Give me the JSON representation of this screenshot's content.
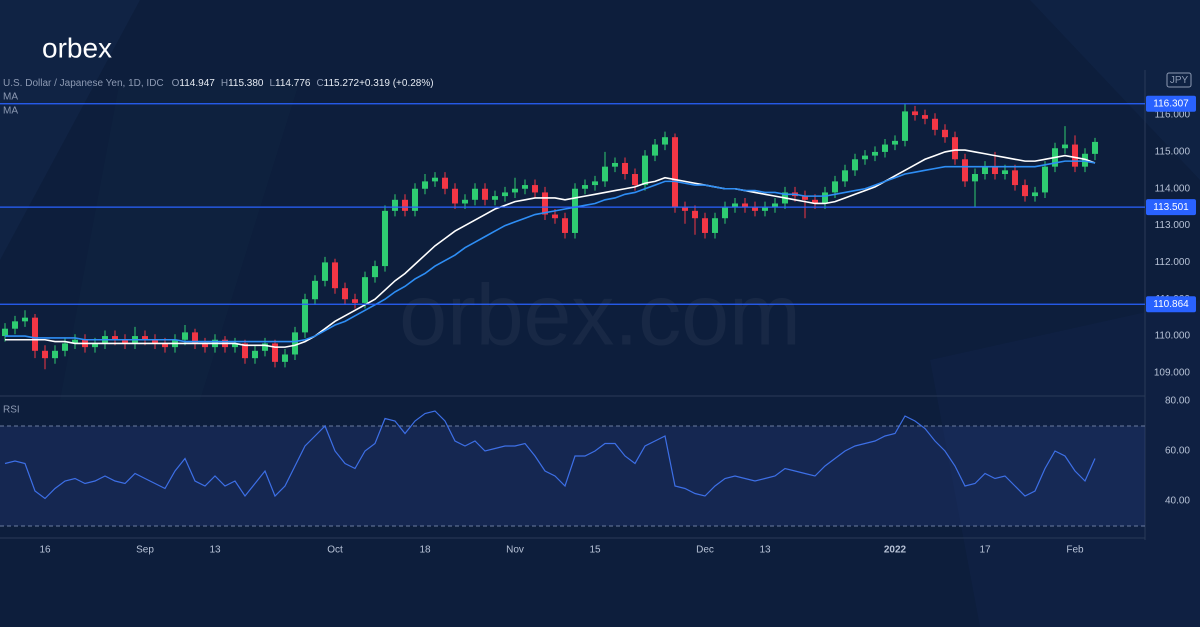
{
  "brand": {
    "logo": "orbex",
    "watermark": "orbex.com"
  },
  "chart_data": [
    {
      "type": "candlestick",
      "title": "U.S. Dollar / Japanese Yen, 1D, IDC",
      "header": [
        "O",
        "114.947",
        "H",
        "115.380",
        "L",
        "114.776",
        "C",
        "115.272",
        "+0.319 (+0.28%)"
      ],
      "currency": "JPY",
      "categories": [
        null,
        null,
        null,
        null,
        "16",
        null,
        null,
        null,
        null,
        null,
        null,
        null,
        null,
        null,
        "Sep",
        null,
        null,
        null,
        null,
        null,
        null,
        "13",
        null,
        null,
        null,
        null,
        null,
        null,
        null,
        null,
        null,
        null,
        null,
        "Oct",
        null,
        null,
        null,
        null,
        null,
        null,
        null,
        null,
        "18",
        null,
        null,
        null,
        null,
        null,
        null,
        null,
        null,
        "Nov",
        null,
        null,
        null,
        null,
        null,
        null,
        null,
        "15",
        null,
        null,
        null,
        null,
        null,
        null,
        null,
        null,
        null,
        null,
        "Dec",
        null,
        null,
        null,
        null,
        null,
        "13",
        null,
        null,
        null,
        null,
        null,
        null,
        null,
        null,
        null,
        null,
        null,
        null,
        "2022",
        null,
        null,
        null,
        null,
        null,
        null,
        null,
        null,
        "17",
        null,
        null,
        null,
        null,
        null,
        null,
        null,
        null,
        "Feb",
        null,
        null
      ],
      "ohlc": [
        [
          110.0,
          110.35,
          109.85,
          110.2
        ],
        [
          110.2,
          110.55,
          110.05,
          110.4
        ],
        [
          110.4,
          110.7,
          110.25,
          110.5
        ],
        [
          110.5,
          110.6,
          109.4,
          109.6
        ],
        [
          109.6,
          109.75,
          109.1,
          109.4
        ],
        [
          109.4,
          109.75,
          109.25,
          109.6
        ],
        [
          109.6,
          109.95,
          109.45,
          109.8
        ],
        [
          109.8,
          110.05,
          109.65,
          109.9
        ],
        [
          109.9,
          110.05,
          109.55,
          109.7
        ],
        [
          109.7,
          109.95,
          109.55,
          109.8
        ],
        [
          109.8,
          110.15,
          109.65,
          110.0
        ],
        [
          110.0,
          110.15,
          109.75,
          109.9
        ],
        [
          109.9,
          110.05,
          109.65,
          109.8
        ],
        [
          109.8,
          110.25,
          109.65,
          110.0
        ],
        [
          110.0,
          110.15,
          109.75,
          109.9
        ],
        [
          109.9,
          110.05,
          109.65,
          109.8
        ],
        [
          109.8,
          109.95,
          109.55,
          109.7
        ],
        [
          109.7,
          110.05,
          109.55,
          109.9
        ],
        [
          109.9,
          110.3,
          109.75,
          110.1
        ],
        [
          110.1,
          110.2,
          109.65,
          109.8
        ],
        [
          109.8,
          109.95,
          109.55,
          109.7
        ],
        [
          109.7,
          110.05,
          109.55,
          109.9
        ],
        [
          109.9,
          110.0,
          109.55,
          109.7
        ],
        [
          109.7,
          109.95,
          109.55,
          109.8
        ],
        [
          109.8,
          109.9,
          109.25,
          109.4
        ],
        [
          109.4,
          109.75,
          109.25,
          109.6
        ],
        [
          109.6,
          109.95,
          109.45,
          109.8
        ],
        [
          109.8,
          109.9,
          109.15,
          109.3
        ],
        [
          109.3,
          109.65,
          109.15,
          109.5
        ],
        [
          109.5,
          110.25,
          109.35,
          110.1
        ],
        [
          110.1,
          111.15,
          109.95,
          111.0
        ],
        [
          111.0,
          111.65,
          110.85,
          111.5
        ],
        [
          111.5,
          112.15,
          111.35,
          112.0
        ],
        [
          112.0,
          112.1,
          111.15,
          111.3
        ],
        [
          111.3,
          111.45,
          110.85,
          111.0
        ],
        [
          111.0,
          111.15,
          110.75,
          110.9
        ],
        [
          110.9,
          111.75,
          110.75,
          111.6
        ],
        [
          111.6,
          112.05,
          111.45,
          111.9
        ],
        [
          111.9,
          113.55,
          111.75,
          113.4
        ],
        [
          113.4,
          113.85,
          113.25,
          113.7
        ],
        [
          113.7,
          113.85,
          113.25,
          113.4
        ],
        [
          113.4,
          114.15,
          113.25,
          114.0
        ],
        [
          114.0,
          114.4,
          113.85,
          114.2
        ],
        [
          114.2,
          114.45,
          114.05,
          114.3
        ],
        [
          114.3,
          114.45,
          113.85,
          114.0
        ],
        [
          114.0,
          114.15,
          113.45,
          113.6
        ],
        [
          113.6,
          113.85,
          113.45,
          113.7
        ],
        [
          113.7,
          114.15,
          113.55,
          114.0
        ],
        [
          114.0,
          114.15,
          113.55,
          113.7
        ],
        [
          113.7,
          113.95,
          113.55,
          113.8
        ],
        [
          113.8,
          114.05,
          113.65,
          113.9
        ],
        [
          113.9,
          114.3,
          113.75,
          114.0
        ],
        [
          114.0,
          114.25,
          113.85,
          114.1
        ],
        [
          114.1,
          114.25,
          113.75,
          113.9
        ],
        [
          113.9,
          114.05,
          113.15,
          113.3
        ],
        [
          113.3,
          113.45,
          113.05,
          113.2
        ],
        [
          113.2,
          113.35,
          112.65,
          112.8
        ],
        [
          112.8,
          114.15,
          112.65,
          114.0
        ],
        [
          114.0,
          114.25,
          113.85,
          114.1
        ],
        [
          114.1,
          114.35,
          113.95,
          114.2
        ],
        [
          114.2,
          115.0,
          114.05,
          114.6
        ],
        [
          114.6,
          114.85,
          114.45,
          114.7
        ],
        [
          114.7,
          114.85,
          114.25,
          114.4
        ],
        [
          114.4,
          114.55,
          113.95,
          114.1
        ],
        [
          114.1,
          115.05,
          113.95,
          114.9
        ],
        [
          114.9,
          115.35,
          114.75,
          115.2
        ],
        [
          115.2,
          115.55,
          115.05,
          115.4
        ],
        [
          115.4,
          115.5,
          113.35,
          113.5
        ],
        [
          113.5,
          113.65,
          113.05,
          113.4
        ],
        [
          113.4,
          113.55,
          112.75,
          113.2
        ],
        [
          113.2,
          113.35,
          112.65,
          112.8
        ],
        [
          112.8,
          113.35,
          112.65,
          113.2
        ],
        [
          113.2,
          113.65,
          113.05,
          113.5
        ],
        [
          113.5,
          113.75,
          113.35,
          113.6
        ],
        [
          113.6,
          113.75,
          113.35,
          113.5
        ],
        [
          113.5,
          113.65,
          113.25,
          113.4
        ],
        [
          113.4,
          113.65,
          113.25,
          113.5
        ],
        [
          113.5,
          113.75,
          113.35,
          113.6
        ],
        [
          113.6,
          114.05,
          113.45,
          113.9
        ],
        [
          113.9,
          114.05,
          113.65,
          113.8
        ],
        [
          113.8,
          113.95,
          113.2,
          113.7
        ],
        [
          113.7,
          113.85,
          113.45,
          113.6
        ],
        [
          113.6,
          114.05,
          113.45,
          113.9
        ],
        [
          113.9,
          114.35,
          113.75,
          114.2
        ],
        [
          114.2,
          114.65,
          114.05,
          114.5
        ],
        [
          114.5,
          114.95,
          114.35,
          114.8
        ],
        [
          114.8,
          115.05,
          114.65,
          114.9
        ],
        [
          114.9,
          115.15,
          114.75,
          115.0
        ],
        [
          115.0,
          115.35,
          114.85,
          115.2
        ],
        [
          115.2,
          115.45,
          115.05,
          115.3
        ],
        [
          115.3,
          116.3,
          115.15,
          116.1
        ],
        [
          116.1,
          116.25,
          115.85,
          116.0
        ],
        [
          116.0,
          116.15,
          115.75,
          115.9
        ],
        [
          115.9,
          116.05,
          115.45,
          115.6
        ],
        [
          115.6,
          115.75,
          115.25,
          115.4
        ],
        [
          115.4,
          115.55,
          114.65,
          114.8
        ],
        [
          114.8,
          114.95,
          114.05,
          114.2
        ],
        [
          114.2,
          114.55,
          113.5,
          114.4
        ],
        [
          114.4,
          114.75,
          114.25,
          114.6
        ],
        [
          114.6,
          115.0,
          114.25,
          114.4
        ],
        [
          114.4,
          114.65,
          114.25,
          114.5
        ],
        [
          114.5,
          114.65,
          113.95,
          114.1
        ],
        [
          114.1,
          114.25,
          113.65,
          113.8
        ],
        [
          113.8,
          114.05,
          113.65,
          113.9
        ],
        [
          113.9,
          114.75,
          113.75,
          114.6
        ],
        [
          114.6,
          115.25,
          114.45,
          115.1
        ],
        [
          115.1,
          115.7,
          114.95,
          115.2
        ],
        [
          115.2,
          115.45,
          114.45,
          114.6
        ],
        [
          114.6,
          115.1,
          114.45,
          114.95
        ],
        [
          114.947,
          115.38,
          114.776,
          115.272
        ]
      ],
      "up_color": "#2ecc71",
      "down_color": "#f23645",
      "series": [
        {
          "name": "MA",
          "color": "#ffffff",
          "values": [
            109.9,
            109.9,
            109.9,
            109.9,
            109.9,
            109.85,
            109.85,
            109.8,
            109.8,
            109.8,
            109.8,
            109.8,
            109.8,
            109.8,
            109.8,
            109.8,
            109.8,
            109.8,
            109.8,
            109.8,
            109.8,
            109.8,
            109.8,
            109.8,
            109.75,
            109.75,
            109.75,
            109.7,
            109.7,
            109.75,
            109.85,
            110.0,
            110.2,
            110.4,
            110.55,
            110.7,
            110.85,
            111.0,
            111.25,
            111.5,
            111.7,
            111.95,
            112.2,
            112.45,
            112.65,
            112.85,
            113.0,
            113.15,
            113.3,
            113.45,
            113.55,
            113.65,
            113.7,
            113.75,
            113.75,
            113.75,
            113.7,
            113.75,
            113.8,
            113.85,
            113.9,
            113.95,
            114.0,
            114.05,
            114.15,
            114.2,
            114.3,
            114.25,
            114.2,
            114.15,
            114.1,
            114.05,
            114.0,
            114.0,
            113.95,
            113.9,
            113.85,
            113.8,
            113.75,
            113.7,
            113.65,
            113.6,
            113.6,
            113.65,
            113.75,
            113.85,
            113.95,
            114.05,
            114.2,
            114.35,
            114.5,
            114.65,
            114.8,
            114.9,
            115.0,
            115.05,
            115.05,
            115.0,
            114.95,
            114.9,
            114.85,
            114.8,
            114.75,
            114.75,
            114.8,
            114.85,
            114.9,
            114.85,
            114.8,
            114.7
          ]
        },
        {
          "name": "MA",
          "color": "#2e8ef5",
          "values": [
            110.0,
            110.0,
            110.0,
            109.95,
            109.95,
            109.95,
            109.95,
            109.95,
            109.9,
            109.9,
            109.9,
            109.9,
            109.9,
            109.9,
            109.9,
            109.9,
            109.9,
            109.9,
            109.85,
            109.85,
            109.85,
            109.85,
            109.85,
            109.85,
            109.85,
            109.85,
            109.85,
            109.85,
            109.85,
            109.85,
            109.9,
            110.0,
            110.15,
            110.3,
            110.4,
            110.55,
            110.7,
            110.85,
            111.0,
            111.2,
            111.35,
            111.55,
            111.7,
            111.9,
            112.05,
            112.2,
            112.4,
            112.55,
            112.7,
            112.85,
            113.0,
            113.1,
            113.2,
            113.3,
            113.35,
            113.4,
            113.45,
            113.5,
            113.55,
            113.6,
            113.7,
            113.75,
            113.85,
            113.9,
            114.0,
            114.1,
            114.2,
            114.2,
            114.15,
            114.1,
            114.1,
            114.05,
            114.0,
            114.0,
            113.95,
            113.95,
            113.9,
            113.9,
            113.85,
            113.85,
            113.8,
            113.8,
            113.8,
            113.85,
            113.9,
            113.95,
            114.0,
            114.1,
            114.2,
            114.3,
            114.4,
            114.45,
            114.5,
            114.55,
            114.6,
            114.6,
            114.6,
            114.6,
            114.6,
            114.6,
            114.6,
            114.6,
            114.6,
            114.6,
            114.65,
            114.7,
            114.75,
            114.75,
            114.75,
            114.7
          ]
        }
      ],
      "levels": [
        116.307,
        113.501,
        110.864
      ],
      "level_color": "#2962ff",
      "ylim": [
        108.4,
        117.17
      ],
      "yticks": [
        {
          "value": 109,
          "label": "109.000"
        },
        {
          "value": 110,
          "label": "110.000"
        },
        {
          "value": 111,
          "label": "111.000"
        },
        {
          "value": 112,
          "label": "112.000"
        },
        {
          "value": 113,
          "label": "113.000"
        },
        {
          "value": 114,
          "label": "114.000"
        },
        {
          "value": 115,
          "label": "115.000"
        },
        {
          "value": 116,
          "label": "116.000"
        }
      ]
    },
    {
      "type": "line",
      "title": "RSI",
      "color": "#3d6fe6",
      "values": [
        55,
        56,
        55,
        44,
        41,
        45,
        48,
        49,
        47,
        48,
        50,
        48,
        47,
        51,
        49,
        47,
        45,
        52,
        57,
        48,
        46,
        50,
        46,
        48,
        42,
        47,
        52,
        42,
        46,
        54,
        62,
        66,
        70,
        60,
        55,
        53,
        60,
        63,
        73,
        72,
        67,
        72,
        75,
        76,
        72,
        64,
        62,
        64,
        60,
        61,
        62,
        62,
        63,
        58,
        52,
        50,
        46,
        58,
        58,
        60,
        63,
        63,
        58,
        55,
        62,
        64,
        66,
        46,
        45,
        43,
        42,
        46,
        49,
        50,
        49,
        48,
        49,
        50,
        53,
        52,
        51,
        50,
        54,
        57,
        60,
        62,
        63,
        64,
        66,
        67,
        74,
        72,
        69,
        64,
        60,
        54,
        46,
        47,
        51,
        49,
        50,
        46,
        42,
        44,
        53,
        60,
        58,
        52,
        48,
        57
      ],
      "band": [
        30,
        70
      ],
      "ylim": [
        25.6,
        82
      ],
      "yticks": [
        {
          "value": 40,
          "label": "40.00"
        },
        {
          "value": 60,
          "label": "60.00"
        },
        {
          "value": 80,
          "label": "80.00"
        }
      ]
    }
  ]
}
